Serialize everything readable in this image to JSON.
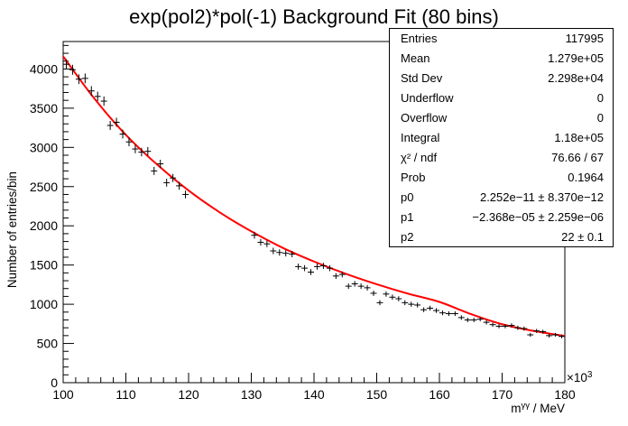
{
  "chart_data": {
    "type": "scatter",
    "title": "exp(pol2)*pol(-1) Background Fit (80 bins)",
    "xlabel": "m^{γγ} / MeV",
    "ylabel": "Number of entries/bin",
    "x_exponent_label": "×10",
    "x_exponent_power": "3",
    "xlim": [
      100,
      180
    ],
    "ylim": [
      0,
      4350
    ],
    "x_ticks": [
      100,
      110,
      120,
      130,
      140,
      150,
      160,
      170,
      180
    ],
    "y_ticks": [
      0,
      500,
      1000,
      1500,
      2000,
      2500,
      3000,
      3500,
      4000
    ],
    "bin_width": 1,
    "series": [
      {
        "values": [
          [
            100.5,
            4060
          ],
          [
            101.5,
            3990
          ],
          [
            102.5,
            3870
          ],
          [
            103.5,
            3880
          ],
          [
            104.5,
            3720
          ],
          [
            105.5,
            3650
          ],
          [
            106.5,
            3590
          ],
          [
            107.5,
            3280
          ],
          [
            108.5,
            3320
          ],
          [
            109.5,
            3170
          ],
          [
            110.5,
            3070
          ],
          [
            111.5,
            2980
          ],
          [
            112.5,
            2940
          ],
          [
            113.5,
            2950
          ],
          [
            114.5,
            2700
          ],
          [
            115.5,
            2790
          ],
          [
            116.5,
            2550
          ],
          [
            117.5,
            2610
          ],
          [
            118.5,
            2510
          ],
          [
            119.5,
            2400
          ],
          [
            130.5,
            1880
          ],
          [
            131.5,
            1790
          ],
          [
            132.5,
            1770
          ],
          [
            133.5,
            1680
          ],
          [
            134.5,
            1660
          ],
          [
            135.5,
            1650
          ],
          [
            136.5,
            1640
          ],
          [
            137.5,
            1480
          ],
          [
            138.5,
            1460
          ],
          [
            139.5,
            1410
          ],
          [
            140.5,
            1480
          ],
          [
            141.5,
            1490
          ],
          [
            142.5,
            1460
          ],
          [
            143.5,
            1360
          ],
          [
            144.5,
            1380
          ],
          [
            145.5,
            1230
          ],
          [
            146.5,
            1260
          ],
          [
            147.5,
            1230
          ],
          [
            148.5,
            1210
          ],
          [
            149.5,
            1140
          ],
          [
            150.5,
            1020
          ],
          [
            151.5,
            1130
          ],
          [
            152.5,
            1090
          ],
          [
            153.5,
            1070
          ],
          [
            154.5,
            1020
          ],
          [
            155.5,
            1000
          ],
          [
            156.5,
            990
          ],
          [
            157.5,
            930
          ],
          [
            158.5,
            950
          ],
          [
            159.5,
            920
          ],
          [
            160.5,
            890
          ],
          [
            161.5,
            880
          ],
          [
            162.5,
            880
          ],
          [
            163.5,
            830
          ],
          [
            164.5,
            800
          ],
          [
            165.5,
            800
          ],
          [
            166.5,
            810
          ],
          [
            167.5,
            770
          ],
          [
            168.5,
            740
          ],
          [
            169.5,
            720
          ],
          [
            170.5,
            720
          ],
          [
            171.5,
            730
          ],
          [
            172.5,
            700
          ],
          [
            173.5,
            690
          ],
          [
            174.5,
            610
          ],
          [
            175.5,
            660
          ],
          [
            176.5,
            650
          ],
          [
            177.5,
            600
          ],
          [
            178.5,
            610
          ],
          [
            179.5,
            590
          ]
        ]
      }
    ],
    "fit_curve": [
      [
        100,
        4160
      ],
      [
        105,
        3620
      ],
      [
        110,
        3160
      ],
      [
        115,
        2780
      ],
      [
        120,
        2450
      ],
      [
        125,
        2170
      ],
      [
        130,
        1930
      ],
      [
        135,
        1720
      ],
      [
        140,
        1545
      ],
      [
        145,
        1390
      ],
      [
        150,
        1255
      ],
      [
        155,
        1135
      ],
      [
        160,
        1030
      ],
      [
        165,
        875
      ],
      [
        170,
        745
      ],
      [
        175,
        660
      ],
      [
        180,
        595
      ]
    ],
    "fit_color": "#ff0000",
    "marker_color": "#000000"
  },
  "stats_box": [
    {
      "key": "Entries",
      "value": "117995"
    },
    {
      "key": "Mean",
      "value": "1.279e+05"
    },
    {
      "key": "Std Dev",
      "value": "2.298e+04"
    },
    {
      "key": "Underflow",
      "value": "0"
    },
    {
      "key": "Overflow",
      "value": "0"
    },
    {
      "key": "Integral",
      "value": "1.18e+05"
    },
    {
      "key": "χ² / ndf",
      "value": "76.66 / 67"
    },
    {
      "key": "Prob",
      "value": "0.1964"
    },
    {
      "key": "p0",
      "value": "2.252e−11 ± 8.370e−12"
    },
    {
      "key": "p1",
      "value": "−2.368e−05 ± 2.259e−06"
    },
    {
      "key": "p2",
      "value": "22 ± 0.1"
    }
  ]
}
